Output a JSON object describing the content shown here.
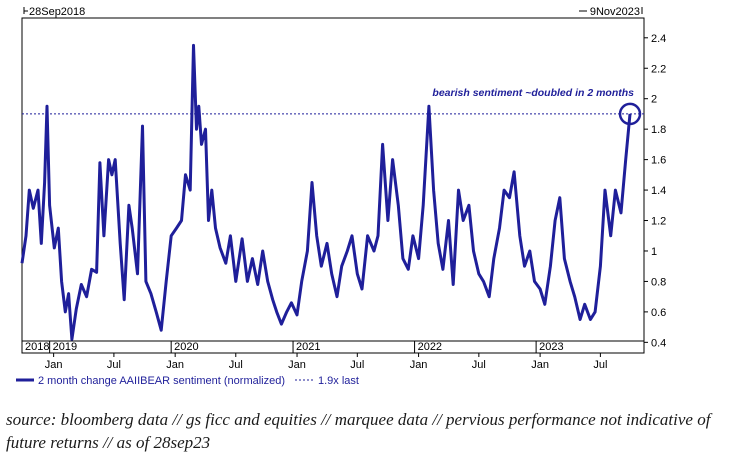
{
  "chart_data": {
    "type": "line",
    "range_start_label": "28Sep2018",
    "range_end_label": "9Nov2023",
    "y_axis": {
      "ticks": [
        0.4,
        0.6,
        0.8,
        1,
        1.2,
        1.4,
        1.6,
        1.8,
        2,
        2.2,
        2.4
      ],
      "tick_labels": [
        "0.4",
        "0.6",
        "0.8",
        "1",
        "1.2",
        "1.4",
        "1.6",
        "1.8",
        "2",
        "2.2",
        "2.4"
      ],
      "range": [
        0.33,
        2.53
      ],
      "position": "right"
    },
    "x_axis": {
      "range": [
        "2018-09-28",
        "2023-11-09"
      ],
      "year_labels": [
        {
          "text": "2018",
          "date": "2018-09-28"
        },
        {
          "text": "2019",
          "date": "2018-12-20"
        },
        {
          "text": "2020",
          "date": "2019-12-20"
        },
        {
          "text": "2021",
          "date": "2020-12-20"
        },
        {
          "text": "2022",
          "date": "2021-12-20"
        },
        {
          "text": "2023",
          "date": "2022-12-20"
        }
      ],
      "month_labels": [
        {
          "text": "Jan",
          "date": "2019-01-01"
        },
        {
          "text": "Jul",
          "date": "2019-07-01"
        },
        {
          "text": "Jan",
          "date": "2020-01-01"
        },
        {
          "text": "Jul",
          "date": "2020-07-01"
        },
        {
          "text": "Jan",
          "date": "2021-01-01"
        },
        {
          "text": "Jul",
          "date": "2021-07-01"
        },
        {
          "text": "Jan",
          "date": "2022-01-01"
        },
        {
          "text": "Jul",
          "date": "2022-07-01"
        },
        {
          "text": "Jan",
          "date": "2023-01-01"
        },
        {
          "text": "Jul",
          "date": "2023-07-01"
        }
      ]
    },
    "series": [
      {
        "name": "2 month change AAIIBEAR sentiment (normalized)",
        "color": "#1f1f9a",
        "points": [
          [
            "2018-09-28",
            0.92
          ],
          [
            "2018-10-10",
            1.1
          ],
          [
            "2018-10-20",
            1.4
          ],
          [
            "2018-11-01",
            1.28
          ],
          [
            "2018-11-15",
            1.4
          ],
          [
            "2018-11-25",
            1.05
          ],
          [
            "2018-12-05",
            1.45
          ],
          [
            "2018-12-12",
            1.95
          ],
          [
            "2018-12-20",
            1.3
          ],
          [
            "2019-01-03",
            1.02
          ],
          [
            "2019-01-15",
            1.15
          ],
          [
            "2019-01-25",
            0.8
          ],
          [
            "2019-02-05",
            0.6
          ],
          [
            "2019-02-15",
            0.72
          ],
          [
            "2019-02-25",
            0.42
          ],
          [
            "2019-03-10",
            0.62
          ],
          [
            "2019-03-25",
            0.78
          ],
          [
            "2019-04-10",
            0.7
          ],
          [
            "2019-04-25",
            0.88
          ],
          [
            "2019-05-10",
            0.86
          ],
          [
            "2019-05-20",
            1.58
          ],
          [
            "2019-06-01",
            1.1
          ],
          [
            "2019-06-15",
            1.6
          ],
          [
            "2019-06-25",
            1.5
          ],
          [
            "2019-07-05",
            1.6
          ],
          [
            "2019-07-20",
            1.05
          ],
          [
            "2019-08-01",
            0.68
          ],
          [
            "2019-08-15",
            1.3
          ],
          [
            "2019-08-25",
            1.15
          ],
          [
            "2019-09-10",
            0.85
          ],
          [
            "2019-09-25",
            1.82
          ],
          [
            "2019-10-05",
            0.8
          ],
          [
            "2019-10-20",
            0.72
          ],
          [
            "2019-11-05",
            0.6
          ],
          [
            "2019-11-20",
            0.48
          ],
          [
            "2019-12-05",
            0.8
          ],
          [
            "2019-12-20",
            1.1
          ],
          [
            "2020-01-05",
            1.15
          ],
          [
            "2020-01-20",
            1.2
          ],
          [
            "2020-02-01",
            1.5
          ],
          [
            "2020-02-15",
            1.4
          ],
          [
            "2020-02-25",
            2.35
          ],
          [
            "2020-03-05",
            1.8
          ],
          [
            "2020-03-12",
            1.95
          ],
          [
            "2020-03-20",
            1.7
          ],
          [
            "2020-04-01",
            1.8
          ],
          [
            "2020-04-10",
            1.2
          ],
          [
            "2020-04-20",
            1.4
          ],
          [
            "2020-05-01",
            1.15
          ],
          [
            "2020-05-15",
            1.02
          ],
          [
            "2020-06-01",
            0.92
          ],
          [
            "2020-06-15",
            1.1
          ],
          [
            "2020-07-01",
            0.8
          ],
          [
            "2020-07-20",
            1.08
          ],
          [
            "2020-08-05",
            0.8
          ],
          [
            "2020-08-20",
            0.95
          ],
          [
            "2020-09-05",
            0.78
          ],
          [
            "2020-09-20",
            1.0
          ],
          [
            "2020-10-05",
            0.8
          ],
          [
            "2020-10-20",
            0.68
          ],
          [
            "2020-11-01",
            0.6
          ],
          [
            "2020-11-15",
            0.52
          ],
          [
            "2020-12-01",
            0.6
          ],
          [
            "2020-12-15",
            0.66
          ],
          [
            "2021-01-01",
            0.58
          ],
          [
            "2021-01-15",
            0.8
          ],
          [
            "2021-02-01",
            1.0
          ],
          [
            "2021-02-15",
            1.45
          ],
          [
            "2021-03-01",
            1.1
          ],
          [
            "2021-03-15",
            0.9
          ],
          [
            "2021-04-01",
            1.05
          ],
          [
            "2021-04-15",
            0.85
          ],
          [
            "2021-05-01",
            0.7
          ],
          [
            "2021-05-15",
            0.9
          ],
          [
            "2021-06-01",
            1.0
          ],
          [
            "2021-06-15",
            1.1
          ],
          [
            "2021-07-01",
            0.85
          ],
          [
            "2021-07-15",
            0.75
          ],
          [
            "2021-08-01",
            1.1
          ],
          [
            "2021-08-20",
            1.0
          ],
          [
            "2021-09-01",
            1.1
          ],
          [
            "2021-09-15",
            1.7
          ],
          [
            "2021-10-01",
            1.2
          ],
          [
            "2021-10-15",
            1.6
          ],
          [
            "2021-11-01",
            1.3
          ],
          [
            "2021-11-15",
            0.95
          ],
          [
            "2021-12-01",
            0.88
          ],
          [
            "2021-12-15",
            1.1
          ],
          [
            "2022-01-01",
            0.95
          ],
          [
            "2022-01-15",
            1.3
          ],
          [
            "2022-02-01",
            1.95
          ],
          [
            "2022-02-15",
            1.4
          ],
          [
            "2022-03-01",
            1.05
          ],
          [
            "2022-03-15",
            0.88
          ],
          [
            "2022-04-01",
            1.2
          ],
          [
            "2022-04-15",
            0.78
          ],
          [
            "2022-05-01",
            1.4
          ],
          [
            "2022-05-15",
            1.2
          ],
          [
            "2022-06-01",
            1.3
          ],
          [
            "2022-06-15",
            1.0
          ],
          [
            "2022-07-01",
            0.85
          ],
          [
            "2022-07-15",
            0.8
          ],
          [
            "2022-08-01",
            0.7
          ],
          [
            "2022-08-15",
            0.95
          ],
          [
            "2022-09-01",
            1.15
          ],
          [
            "2022-09-15",
            1.4
          ],
          [
            "2022-10-01",
            1.35
          ],
          [
            "2022-10-15",
            1.52
          ],
          [
            "2022-11-01",
            1.1
          ],
          [
            "2022-11-15",
            0.9
          ],
          [
            "2022-12-01",
            1.0
          ],
          [
            "2022-12-15",
            0.8
          ],
          [
            "2023-01-01",
            0.75
          ],
          [
            "2023-01-15",
            0.65
          ],
          [
            "2023-02-01",
            0.9
          ],
          [
            "2023-02-15",
            1.2
          ],
          [
            "2023-03-01",
            1.35
          ],
          [
            "2023-03-15",
            0.95
          ],
          [
            "2023-04-01",
            0.8
          ],
          [
            "2023-04-15",
            0.7
          ],
          [
            "2023-05-01",
            0.55
          ],
          [
            "2023-05-15",
            0.65
          ],
          [
            "2023-06-01",
            0.55
          ],
          [
            "2023-06-15",
            0.6
          ],
          [
            "2023-07-01",
            0.9
          ],
          [
            "2023-07-15",
            1.4
          ],
          [
            "2023-08-01",
            1.1
          ],
          [
            "2023-08-15",
            1.4
          ],
          [
            "2023-09-01",
            1.25
          ],
          [
            "2023-09-15",
            1.6
          ],
          [
            "2023-09-28",
            1.9
          ]
        ]
      },
      {
        "name": "1.9x last",
        "style": "dashed",
        "color": "#1f1f9a",
        "value": 1.9
      }
    ],
    "annotation": {
      "text": "bearish sentiment ~doubled in 2 months",
      "target": {
        "date": "2023-09-28",
        "value": 1.9
      }
    },
    "legend": {
      "placement": "bottom-left",
      "entries": [
        {
          "label": "2 month change AAIIBEAR sentiment (normalized)",
          "style": "solid"
        },
        {
          "label": "1.9x last",
          "style": "dashed"
        }
      ]
    },
    "grid": false
  },
  "caption": "source: bloomberg data // gs ficc and equities // marquee data // pervious performance not indicative of future returns // as of 28sep23"
}
